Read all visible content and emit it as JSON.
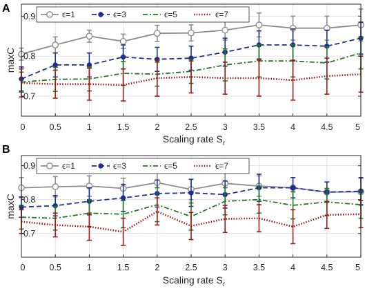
{
  "chart_data": [
    {
      "panel": "A",
      "type": "line",
      "x": [
        0,
        0.5,
        1,
        1.5,
        2,
        2.5,
        3,
        3.5,
        4,
        4.5,
        5
      ],
      "xlabel": "Scaling rate S",
      "xlabel_sub": "r",
      "ylabel": "maxC",
      "xlim": [
        0,
        5
      ],
      "ylim": [
        0.65,
        0.93
      ],
      "yticks": [
        0.7,
        0.8,
        0.9
      ],
      "grid": true,
      "legend": "top-left",
      "series": [
        {
          "name": "ϵ=1",
          "color": "#8c8c8c",
          "style": "solid",
          "marker": "open-circle",
          "values": [
            0.805,
            0.828,
            0.85,
            0.837,
            0.857,
            0.858,
            0.865,
            0.878,
            0.87,
            0.87,
            0.878
          ],
          "err": [
            0.015,
            0.02,
            0.015,
            0.018,
            0.02,
            0.02,
            0.025,
            0.03,
            0.03,
            0.03,
            0.04
          ]
        },
        {
          "name": "ϵ=3",
          "color": "#1f2f8f",
          "style": "dashed",
          "marker": "filled-circle",
          "values": [
            0.743,
            0.778,
            0.778,
            0.798,
            0.792,
            0.795,
            0.81,
            0.828,
            0.828,
            0.825,
            0.845
          ],
          "err": [
            0.03,
            0.03,
            0.03,
            0.03,
            0.03,
            0.03,
            0.035,
            0.035,
            0.04,
            0.04,
            0.04
          ]
        },
        {
          "name": "ϵ=5",
          "color": "#1f7a1f",
          "style": "dashdot",
          "marker": "none",
          "values": [
            0.735,
            0.742,
            0.743,
            0.757,
            0.755,
            0.762,
            0.778,
            0.788,
            0.788,
            0.783,
            0.808
          ],
          "err": [
            0.025,
            0.03,
            0.03,
            0.03,
            0.03,
            0.03,
            0.04,
            0.04,
            0.04,
            0.04,
            0.04
          ]
        },
        {
          "name": "ϵ=7",
          "color": "#a01818",
          "style": "dotted",
          "marker": "none",
          "values": [
            0.733,
            0.73,
            0.73,
            0.728,
            0.745,
            0.748,
            0.745,
            0.745,
            0.74,
            0.75,
            0.755
          ],
          "err": [
            0.035,
            0.035,
            0.04,
            0.04,
            0.045,
            0.04,
            0.04,
            0.045,
            0.05,
            0.045,
            0.045
          ]
        }
      ],
      "xtick_labels": [
        "0",
        "0.5",
        "1",
        "1.5",
        "2",
        "2.5",
        "3",
        "3.5",
        "4",
        "4.5",
        "5"
      ],
      "ytick_labels": [
        "0.7",
        "0.8",
        "0.9"
      ]
    },
    {
      "panel": "B",
      "type": "line",
      "x": [
        0,
        0.5,
        1,
        1.5,
        2,
        2.5,
        3,
        3.5,
        4,
        4.5,
        5
      ],
      "xlabel": "Scaling rate S",
      "xlabel_sub": "r",
      "ylabel": "maxC",
      "xlim": [
        0,
        5
      ],
      "ylim": [
        0.63,
        0.93
      ],
      "yticks": [
        0.7,
        0.8,
        0.9
      ],
      "grid": true,
      "legend": "top-left",
      "series": [
        {
          "name": "ϵ=1",
          "color": "#8c8c8c",
          "style": "solid",
          "marker": "open-circle",
          "values": [
            0.835,
            0.838,
            0.84,
            0.833,
            0.85,
            0.83,
            0.848,
            0.84,
            0.835,
            0.822,
            0.823
          ],
          "err": [
            0.03,
            0.03,
            0.03,
            0.03,
            0.03,
            0.03,
            0.03,
            0.03,
            0.03,
            0.03,
            0.04
          ]
        },
        {
          "name": "ϵ=3",
          "color": "#1f2f8f",
          "style": "dashed",
          "marker": "filled-circle",
          "values": [
            0.778,
            0.782,
            0.795,
            0.805,
            0.818,
            0.82,
            0.815,
            0.835,
            0.835,
            0.822,
            0.825
          ],
          "err": [
            0.03,
            0.03,
            0.04,
            0.04,
            0.04,
            0.04,
            0.04,
            0.04,
            0.03,
            0.03,
            0.04
          ]
        },
        {
          "name": "ϵ=5",
          "color": "#1f7a1f",
          "style": "dashdot",
          "marker": "none",
          "values": [
            0.748,
            0.745,
            0.76,
            0.757,
            0.785,
            0.75,
            0.795,
            0.8,
            0.783,
            0.793,
            0.785
          ],
          "err": [
            0.035,
            0.035,
            0.04,
            0.04,
            0.05,
            0.04,
            0.04,
            0.04,
            0.04,
            0.04,
            0.04
          ]
        },
        {
          "name": "ϵ=7",
          "color": "#a01818",
          "style": "dotted",
          "marker": "none",
          "values": [
            0.735,
            0.725,
            0.72,
            0.705,
            0.765,
            0.722,
            0.743,
            0.745,
            0.72,
            0.755,
            0.757
          ],
          "err": [
            0.035,
            0.035,
            0.04,
            0.04,
            0.04,
            0.04,
            0.04,
            0.04,
            0.05,
            0.04,
            0.04
          ]
        }
      ],
      "xtick_labels": [
        "0",
        "0.5",
        "1",
        "1.5",
        "2",
        "2.5",
        "3",
        "3.5",
        "4",
        "4.5",
        "5"
      ],
      "ytick_labels": [
        "0.7",
        "0.8",
        "0.9"
      ]
    }
  ]
}
